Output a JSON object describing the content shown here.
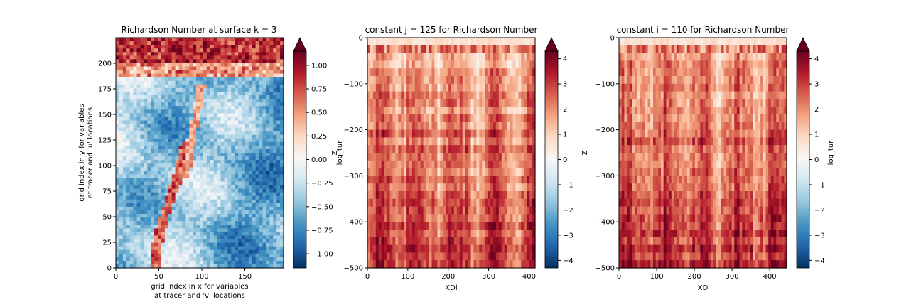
{
  "chart_data": [
    {
      "type": "heatmap",
      "title": "Richardson Number at surface k = 3",
      "xlabel_lines": [
        "grid index in x for variables",
        "at tracer and 'v' locations"
      ],
      "ylabel_lines": [
        "grid index in y for variables",
        "at tracer and 'u' locations"
      ],
      "xlim": [
        0,
        195
      ],
      "ylim": [
        0,
        225
      ],
      "xticks": [
        "0",
        "50",
        "100",
        "150"
      ],
      "yticks": [
        "0",
        "25",
        "50",
        "75",
        "100",
        "125",
        "150",
        "175",
        "200"
      ],
      "colorbar": {
        "label": "",
        "range": [
          -1.15,
          1.15
        ],
        "ticks": [
          "−1.00",
          "−0.75",
          "−0.50",
          "−0.25",
          "0.00",
          "0.25",
          "0.50",
          "0.75",
          "1.00"
        ],
        "extend": "max",
        "colormap": "RdBu_r"
      }
    },
    {
      "type": "heatmap",
      "title": "constant j = 125 for Richardson Number",
      "xlabel": "XDl",
      "ylabel_lines": [
        "Z",
        "log_tur"
      ],
      "xlim": [
        0,
        415
      ],
      "ylim": [
        -500,
        0
      ],
      "xticks": [
        "0",
        "100",
        "200",
        "300",
        "400"
      ],
      "yticks": [
        "0",
        "−100",
        "−200",
        "−300",
        "−400",
        "−500"
      ],
      "colorbar": {
        "label": "",
        "range": [
          -4.3,
          4.3
        ],
        "ticks": [
          "−4",
          "−3",
          "−2",
          "−1",
          "0",
          "1",
          "2",
          "3",
          "4"
        ],
        "extend": "max",
        "colormap": "RdBu_r"
      }
    },
    {
      "type": "heatmap",
      "title": "constant i = 110 for Richardson Number",
      "xlabel": "XD",
      "ylabel_lines": [
        "Z"
      ],
      "xlim": [
        0,
        445
      ],
      "ylim": [
        -500,
        0
      ],
      "xticks": [
        "0",
        "100",
        "200",
        "300",
        "400"
      ],
      "yticks": [
        "0",
        "−100",
        "−200",
        "−300",
        "−400",
        "−500"
      ],
      "colorbar": {
        "label": "log_tur",
        "range": [
          -4.3,
          4.3
        ],
        "ticks": [
          "−4",
          "−3",
          "−2",
          "−1",
          "0",
          "1",
          "2",
          "3",
          "4"
        ],
        "extend": "max",
        "colormap": "RdBu_r"
      }
    }
  ]
}
